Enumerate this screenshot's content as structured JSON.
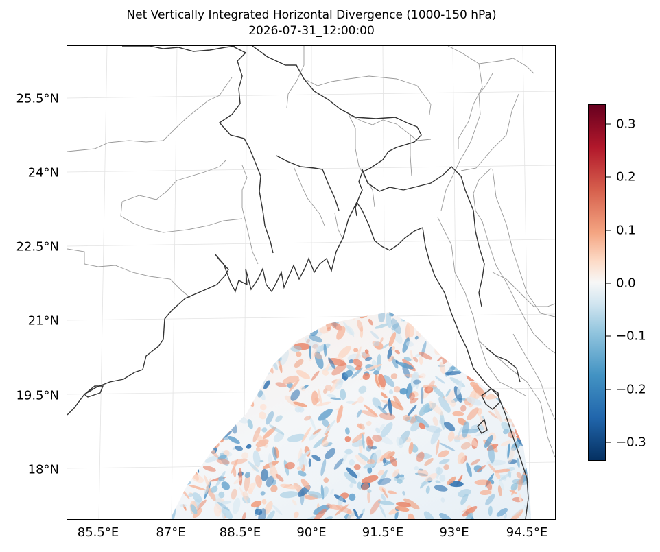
{
  "title": {
    "line1": "Net Vertically Integrated Horizontal Divergence (1000-150 hPa)",
    "line2": "2026-07-31_12:00:00"
  },
  "map": {
    "lat_labels": [
      "25.5°N",
      "24°N",
      "22.5°N",
      "21°N",
      "19.5°N",
      "18°N"
    ],
    "lon_labels": [
      "85.5°E",
      "87°E",
      "88.5°E",
      "90°E",
      "91.5°E",
      "93°E",
      "94.5°E"
    ],
    "lon_extent": [
      84.8,
      94.8
    ],
    "lat_extent": [
      16.9,
      26.6
    ],
    "gridlines": true
  },
  "colorbar": {
    "labels": [
      "0.3",
      "0.2",
      "0.1",
      "0.0",
      "−0.1",
      "−0.2",
      "−0.3"
    ],
    "min": -0.33,
    "max": 0.33,
    "colormap": "RdBu_r"
  },
  "colors": {
    "coastline": "#333333",
    "boundary": "#999999",
    "grid": "#e3e3e3"
  }
}
